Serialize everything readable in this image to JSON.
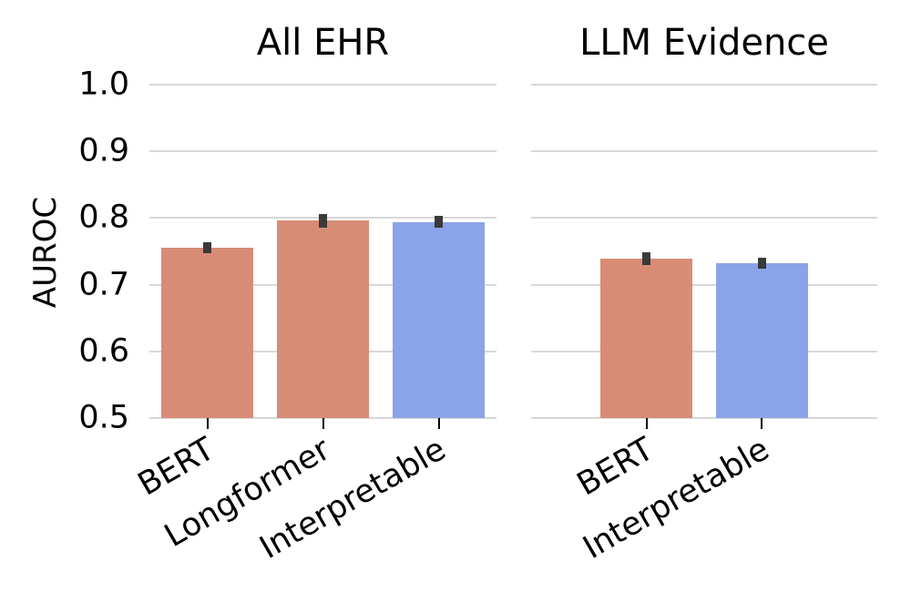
{
  "figure": {
    "ylabel": "AUROC",
    "background": "#ffffff",
    "grid_color": "#d8d8d8",
    "error_bar_color": "#3a3a3a",
    "text_color": "#000000"
  },
  "chart_data": [
    {
      "type": "bar",
      "title": "All EHR",
      "categories": [
        "BERT",
        "Longformer",
        "Interpretable"
      ],
      "values": [
        0.755,
        0.796,
        0.794
      ],
      "errors": [
        0.008,
        0.01,
        0.009
      ],
      "bar_colors": [
        "#d88c76",
        "#d88c76",
        "#8ba3e8"
      ],
      "x": [
        0,
        1,
        2
      ],
      "xlim": [
        -0.5,
        2.5
      ],
      "ylim": [
        0.5,
        1.0
      ],
      "yticks": [
        "0.5",
        "0.6",
        "0.7",
        "0.8",
        "0.9",
        "1.0"
      ],
      "grid": true,
      "bar_width": 0.8,
      "tick_rotation": 30,
      "show_ytick_labels": true
    },
    {
      "type": "bar",
      "title": "LLM Evidence",
      "categories": [
        "BERT",
        "Interpretable"
      ],
      "values": [
        0.739,
        0.732
      ],
      "errors": [
        0.009,
        0.008
      ],
      "bar_colors": [
        "#d88c76",
        "#8ba3e8"
      ],
      "x": [
        0,
        1
      ],
      "xlim": [
        -1.0,
        2.0
      ],
      "ylim": [
        0.5,
        1.0
      ],
      "yticks": [
        "0.5",
        "0.6",
        "0.7",
        "0.8",
        "0.9",
        "1.0"
      ],
      "grid": true,
      "bar_width": 0.8,
      "tick_rotation": 30,
      "show_ytick_labels": false
    }
  ]
}
